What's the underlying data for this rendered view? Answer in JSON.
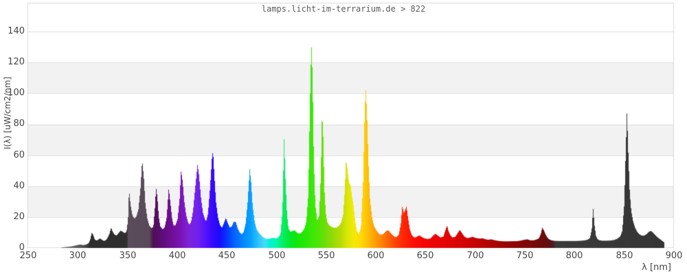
{
  "title": "lamps.licht-im-terrarium.de > 822",
  "colors": {
    "background": "#ffffff",
    "band": "#f2f2f2",
    "grid": "#e0e0e0",
    "frame": "#d9d9d9",
    "tick_text": "#444444",
    "title_text": "#5a5a5a"
  },
  "chart_data": {
    "type": "area",
    "title": "lamps.licht-im-terrarium.de > 822",
    "xlabel": "λ [nm]",
    "ylabel": "I(λ) [uW/cm2/nm]",
    "xlim": [
      250,
      900
    ],
    "ylim": [
      0,
      158.7
    ],
    "grid": "horizontal",
    "legend": "none",
    "x_ticks": [
      250,
      300,
      350,
      400,
      450,
      500,
      550,
      600,
      650,
      700,
      750,
      800,
      850,
      900
    ],
    "y_ticks": [
      0,
      20,
      40,
      60,
      80,
      100,
      120,
      140
    ],
    "x_tick_labels": [
      "250",
      "300",
      "350",
      "400",
      "450",
      "500",
      "550",
      "600",
      "650",
      "700",
      "750",
      "800",
      "850",
      "900"
    ],
    "y_tick_labels": [
      "0",
      "20",
      "40",
      "60",
      "80",
      "100",
      "120",
      "140"
    ],
    "shaded_bands": [
      [
        20,
        40
      ],
      [
        60,
        80
      ],
      [
        100,
        120
      ]
    ],
    "points": [
      [
        283,
        0.3
      ],
      [
        286,
        0.5
      ],
      [
        289,
        0.7
      ],
      [
        292,
        0.9
      ],
      [
        295,
        1.2
      ],
      [
        298,
        1.7
      ],
      [
        301,
        2.1
      ],
      [
        303,
        2.2
      ],
      [
        305,
        1.9
      ],
      [
        307,
        2.0
      ],
      [
        309,
        2.4
      ],
      [
        311,
        3.2
      ],
      [
        312.5,
        5.5
      ],
      [
        314,
        9.8
      ],
      [
        315.5,
        8.5
      ],
      [
        317,
        5.5
      ],
      [
        319,
        4.8
      ],
      [
        321,
        5.6
      ],
      [
        322.5,
        6.2
      ],
      [
        324,
        5.4
      ],
      [
        326,
        4.6
      ],
      [
        328,
        4.9
      ],
      [
        330,
        6.6
      ],
      [
        332,
        9.5
      ],
      [
        333.5,
        13.2
      ],
      [
        335,
        10.6
      ],
      [
        337,
        8.6
      ],
      [
        339,
        8.1
      ],
      [
        341,
        9.6
      ],
      [
        343,
        11.2
      ],
      [
        345,
        10.6
      ],
      [
        347,
        9.6
      ],
      [
        349,
        10.5
      ],
      [
        350.5,
        18
      ],
      [
        351.6,
        38
      ],
      [
        353,
        28
      ],
      [
        355,
        21
      ],
      [
        357,
        19
      ],
      [
        359,
        20.5
      ],
      [
        361,
        25
      ],
      [
        363,
        38
      ],
      [
        364.8,
        57
      ],
      [
        366.5,
        45
      ],
      [
        368,
        28
      ],
      [
        370,
        19
      ],
      [
        372,
        14.5
      ],
      [
        374,
        12.9
      ],
      [
        376,
        13.5
      ],
      [
        377.5,
        25
      ],
      [
        378.8,
        39
      ],
      [
        380,
        33
      ],
      [
        381.5,
        20
      ],
      [
        383,
        14
      ],
      [
        385.5,
        12
      ],
      [
        387.5,
        13.5
      ],
      [
        389.5,
        20
      ],
      [
        391.5,
        38.6
      ],
      [
        393,
        30
      ],
      [
        395,
        18.5
      ],
      [
        396.6,
        14.2
      ],
      [
        398.5,
        15
      ],
      [
        400.5,
        19
      ],
      [
        402.5,
        32
      ],
      [
        403.9,
        50
      ],
      [
        405.5,
        43
      ],
      [
        407,
        31
      ],
      [
        409,
        21.5
      ],
      [
        411,
        16.5
      ],
      [
        412.5,
        15.2
      ],
      [
        414,
        17
      ],
      [
        416,
        24
      ],
      [
        418,
        38
      ],
      [
        420.5,
        54
      ],
      [
        422,
        47
      ],
      [
        424,
        32
      ],
      [
        426,
        22.5
      ],
      [
        428,
        18.5
      ],
      [
        429.2,
        17.3
      ],
      [
        431,
        22
      ],
      [
        433,
        38
      ],
      [
        435,
        58
      ],
      [
        436,
        63
      ],
      [
        437.5,
        46
      ],
      [
        439,
        30
      ],
      [
        441,
        20
      ],
      [
        443,
        15
      ],
      [
        445,
        13
      ],
      [
        447,
        16
      ],
      [
        449,
        19.5
      ],
      [
        451,
        16
      ],
      [
        453,
        13.2
      ],
      [
        455,
        14
      ],
      [
        457,
        17
      ],
      [
        459,
        16.8
      ],
      [
        461,
        12.5
      ],
      [
        463,
        10
      ],
      [
        465,
        8.9
      ],
      [
        467,
        10.5
      ],
      [
        469,
        16
      ],
      [
        471,
        30
      ],
      [
        473,
        51
      ],
      [
        474.5,
        42
      ],
      [
        476,
        27
      ],
      [
        478,
        17
      ],
      [
        480,
        12
      ],
      [
        482,
        10
      ],
      [
        484,
        8.5
      ],
      [
        486,
        7.2
      ],
      [
        488,
        6.4
      ],
      [
        490,
        5.9
      ],
      [
        492,
        5.9
      ],
      [
        494,
        6.2
      ],
      [
        496,
        6.6
      ],
      [
        498,
        6.4
      ],
      [
        500,
        6.3
      ],
      [
        502,
        7
      ],
      [
        504,
        9
      ],
      [
        506,
        24
      ],
      [
        507.6,
        71
      ],
      [
        509,
        44
      ],
      [
        510.5,
        22
      ],
      [
        512,
        12.5
      ],
      [
        514,
        10.5
      ],
      [
        516,
        11
      ],
      [
        518,
        11.4
      ],
      [
        520,
        10.3
      ],
      [
        522,
        9.4
      ],
      [
        524,
        9.4
      ],
      [
        526,
        10.6
      ],
      [
        528,
        12.5
      ],
      [
        530,
        17
      ],
      [
        532,
        34
      ],
      [
        534,
        105
      ],
      [
        535.1,
        132.5
      ],
      [
        536.2,
        112
      ],
      [
        537.5,
        58
      ],
      [
        539,
        28
      ],
      [
        541,
        17.5
      ],
      [
        543,
        21
      ],
      [
        544.6,
        48
      ],
      [
        545.8,
        88.5
      ],
      [
        547,
        72
      ],
      [
        548.2,
        38
      ],
      [
        549.5,
        23
      ],
      [
        551,
        17
      ],
      [
        553,
        14.8
      ],
      [
        555,
        13.8
      ],
      [
        557,
        13.2
      ],
      [
        559,
        13.1
      ],
      [
        561,
        13.4
      ],
      [
        563,
        14.4
      ],
      [
        565,
        16.5
      ],
      [
        567,
        21
      ],
      [
        568.5,
        35
      ],
      [
        570,
        57.8
      ],
      [
        571.5,
        50
      ],
      [
        573,
        42
      ],
      [
        574.5,
        41
      ],
      [
        576,
        33
      ],
      [
        577.5,
        27.5
      ],
      [
        579,
        18
      ],
      [
        581,
        10.5
      ],
      [
        583,
        9
      ],
      [
        585,
        14
      ],
      [
        587,
        40
      ],
      [
        588.8,
        90
      ],
      [
        589.8,
        102.8
      ],
      [
        591,
        88
      ],
      [
        592.5,
        55
      ],
      [
        594,
        32
      ],
      [
        596,
        20
      ],
      [
        598,
        14.5
      ],
      [
        600,
        12
      ],
      [
        602,
        10
      ],
      [
        604,
        8.8
      ],
      [
        606,
        8.6
      ],
      [
        608,
        9.3
      ],
      [
        610,
        10.8
      ],
      [
        611.5,
        11.4
      ],
      [
        613,
        11.2
      ],
      [
        615,
        9.6
      ],
      [
        617,
        8.2
      ],
      [
        619,
        7.2
      ],
      [
        621,
        7.2
      ],
      [
        623,
        8.6
      ],
      [
        625,
        15
      ],
      [
        626.6,
        27.2
      ],
      [
        628,
        22.5
      ],
      [
        629.5,
        24.5
      ],
      [
        630.8,
        27
      ],
      [
        632,
        21
      ],
      [
        634,
        12.5
      ],
      [
        636,
        8.5
      ],
      [
        638,
        7
      ],
      [
        640,
        6.8
      ],
      [
        642,
        7.6
      ],
      [
        644,
        8.1
      ],
      [
        646,
        7.2
      ],
      [
        649,
        6.2
      ],
      [
        652,
        5.8
      ],
      [
        655,
        6.2
      ],
      [
        658,
        8.2
      ],
      [
        660,
        9.2
      ],
      [
        662,
        8.2
      ],
      [
        665,
        6.8
      ],
      [
        668,
        7.4
      ],
      [
        670,
        11.5
      ],
      [
        671.7,
        14.6
      ],
      [
        673,
        11
      ],
      [
        675,
        8.2
      ],
      [
        677,
        6.8
      ],
      [
        680,
        7.2
      ],
      [
        682.5,
        9.8
      ],
      [
        684.5,
        11.6
      ],
      [
        686.5,
        9.8
      ],
      [
        689,
        7.4
      ],
      [
        692,
        6.4
      ],
      [
        695,
        6.8
      ],
      [
        697.5,
        7.2
      ],
      [
        700,
        6.6
      ],
      [
        702.5,
        6.2
      ],
      [
        705,
        6.1
      ],
      [
        707.5,
        6.3
      ],
      [
        710,
        5.7
      ],
      [
        713,
        5.3
      ],
      [
        716,
        5.6
      ],
      [
        719,
        5.1
      ],
      [
        722,
        4.7
      ],
      [
        726,
        4.4
      ],
      [
        730,
        4.3
      ],
      [
        734,
        4.3
      ],
      [
        738,
        4.4
      ],
      [
        742,
        4.4
      ],
      [
        746,
        4.8
      ],
      [
        749.5,
        5.3
      ],
      [
        752.5,
        5.6
      ],
      [
        755,
        5.0
      ],
      [
        758,
        4.9
      ],
      [
        761,
        5.3
      ],
      [
        764,
        6.2
      ],
      [
        766,
        9
      ],
      [
        767.5,
        13.2
      ],
      [
        769,
        11.5
      ],
      [
        771,
        8.5
      ],
      [
        773,
        6.4
      ],
      [
        775,
        5.4
      ],
      [
        777,
        4.9
      ],
      [
        780,
        4.6
      ],
      [
        785,
        4.5
      ],
      [
        790,
        4.5
      ],
      [
        795,
        4.5
      ],
      [
        800,
        4.5
      ],
      [
        805,
        4.6
      ],
      [
        810,
        4.9
      ],
      [
        813,
        5.3
      ],
      [
        815.5,
        6.5
      ],
      [
        817.3,
        12
      ],
      [
        818.7,
        25.8
      ],
      [
        820,
        15
      ],
      [
        821.5,
        8
      ],
      [
        823,
        5.8
      ],
      [
        825,
        5.0
      ],
      [
        828,
        4.7
      ],
      [
        832,
        4.7
      ],
      [
        836,
        4.8
      ],
      [
        840,
        5.2
      ],
      [
        843,
        6.0
      ],
      [
        846,
        7.5
      ],
      [
        848,
        11
      ],
      [
        850,
        28
      ],
      [
        851.5,
        62
      ],
      [
        852.7,
        88.5
      ],
      [
        854,
        62
      ],
      [
        855.5,
        36
      ],
      [
        857,
        24
      ],
      [
        859,
        17
      ],
      [
        861,
        13
      ],
      [
        863,
        10.5
      ],
      [
        865,
        9
      ],
      [
        867,
        8.2
      ],
      [
        869,
        7.9
      ],
      [
        871,
        8.3
      ],
      [
        873,
        9.3
      ],
      [
        875,
        10.6
      ],
      [
        877,
        11
      ],
      [
        879,
        9.9
      ],
      [
        881,
        8.5
      ],
      [
        883,
        7.2
      ],
      [
        885,
        6.2
      ],
      [
        887,
        5.2
      ],
      [
        889,
        4.2
      ],
      [
        890.5,
        3.5
      ]
    ],
    "color_stops": [
      [
        283,
        "#777777"
      ],
      [
        298,
        "#5f5f5f"
      ],
      [
        308,
        "#474747"
      ],
      [
        312,
        "#2e2e2e"
      ],
      [
        349.5,
        "#2e2e2e"
      ],
      [
        350.5,
        "#5b4c5b"
      ],
      [
        372,
        "#594a59"
      ],
      [
        376,
        "#4e1054"
      ],
      [
        385,
        "#5f0c7a"
      ],
      [
        395,
        "#6f0f98"
      ],
      [
        403,
        "#7a13b5"
      ],
      [
        412,
        "#7e23d9"
      ],
      [
        421,
        "#7020f0"
      ],
      [
        429,
        "#5413fc"
      ],
      [
        436,
        "#3609ff"
      ],
      [
        443,
        "#1b0bff"
      ],
      [
        450,
        "#0637ff"
      ],
      [
        458,
        "#0566ff"
      ],
      [
        466,
        "#0584ff"
      ],
      [
        474,
        "#05a1ff"
      ],
      [
        482,
        "#2fc5ff"
      ],
      [
        488,
        "#48dbf5"
      ],
      [
        493,
        "#06f0d9"
      ],
      [
        500,
        "#06f7a9"
      ],
      [
        507,
        "#05ef61"
      ],
      [
        514,
        "#05e729"
      ],
      [
        521,
        "#15e706"
      ],
      [
        530,
        "#2ce706"
      ],
      [
        540,
        "#47e706"
      ],
      [
        548,
        "#69df06"
      ],
      [
        556,
        "#91db06"
      ],
      [
        564,
        "#b5db06"
      ],
      [
        572,
        "#dde706"
      ],
      [
        578,
        "#f3eb06"
      ],
      [
        584,
        "#ffdc06"
      ],
      [
        590,
        "#ffc706"
      ],
      [
        597,
        "#ffa706"
      ],
      [
        605,
        "#ff8706"
      ],
      [
        612,
        "#ff6506"
      ],
      [
        620,
        "#ff4306"
      ],
      [
        628,
        "#ff2706"
      ],
      [
        638,
        "#fb1006"
      ],
      [
        648,
        "#f40606"
      ],
      [
        665,
        "#e70505"
      ],
      [
        685,
        "#d70303"
      ],
      [
        705,
        "#bf0303"
      ],
      [
        725,
        "#9f0303"
      ],
      [
        745,
        "#870505"
      ],
      [
        760,
        "#760909"
      ],
      [
        772,
        "#650e0e"
      ],
      [
        778,
        "#531520"
      ],
      [
        781,
        "#3a3a3a"
      ],
      [
        891,
        "#353535"
      ]
    ]
  }
}
